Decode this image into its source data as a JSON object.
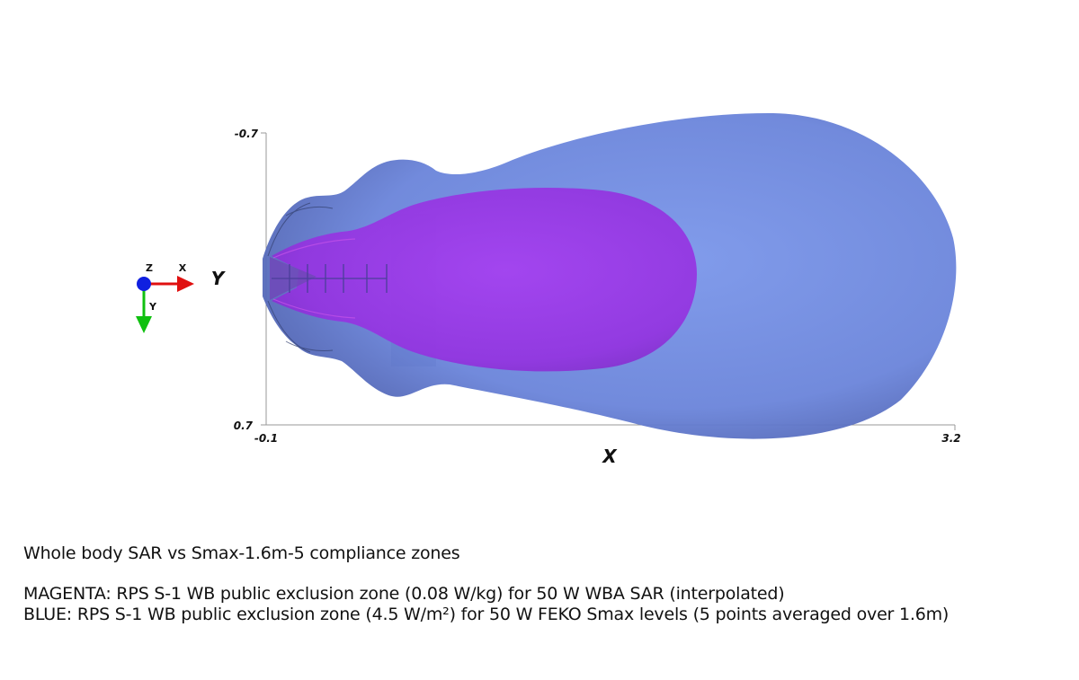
{
  "axes": {
    "y_top_label": "-0.7",
    "y_bottom_label": "0.7",
    "x_left_label": "-0.1",
    "x_right_label": "3.2",
    "x_title": "X",
    "y_title": "Y"
  },
  "orientation_widget": {
    "z_label": "Z",
    "x_label": "X",
    "y_label": "Y",
    "colors": {
      "x": "#e01010",
      "y": "#10c010",
      "z": "#1020e0"
    }
  },
  "zones": {
    "blue_color": "#6a86dc",
    "magenta_color": "#9b38e6"
  },
  "caption": {
    "title": "Whole body SAR vs Smax-1.6m-5 compliance zones",
    "magenta": "MAGENTA: RPS S-1 WB public exclusion zone (0.08 W/kg) for 50 W WBA SAR (interpolated)",
    "blue": "BLUE: RPS S-1 WB public exclusion zone (4.5 W/m²) for 50 W FEKO Smax levels (5 points averaged over 1.6m)"
  }
}
